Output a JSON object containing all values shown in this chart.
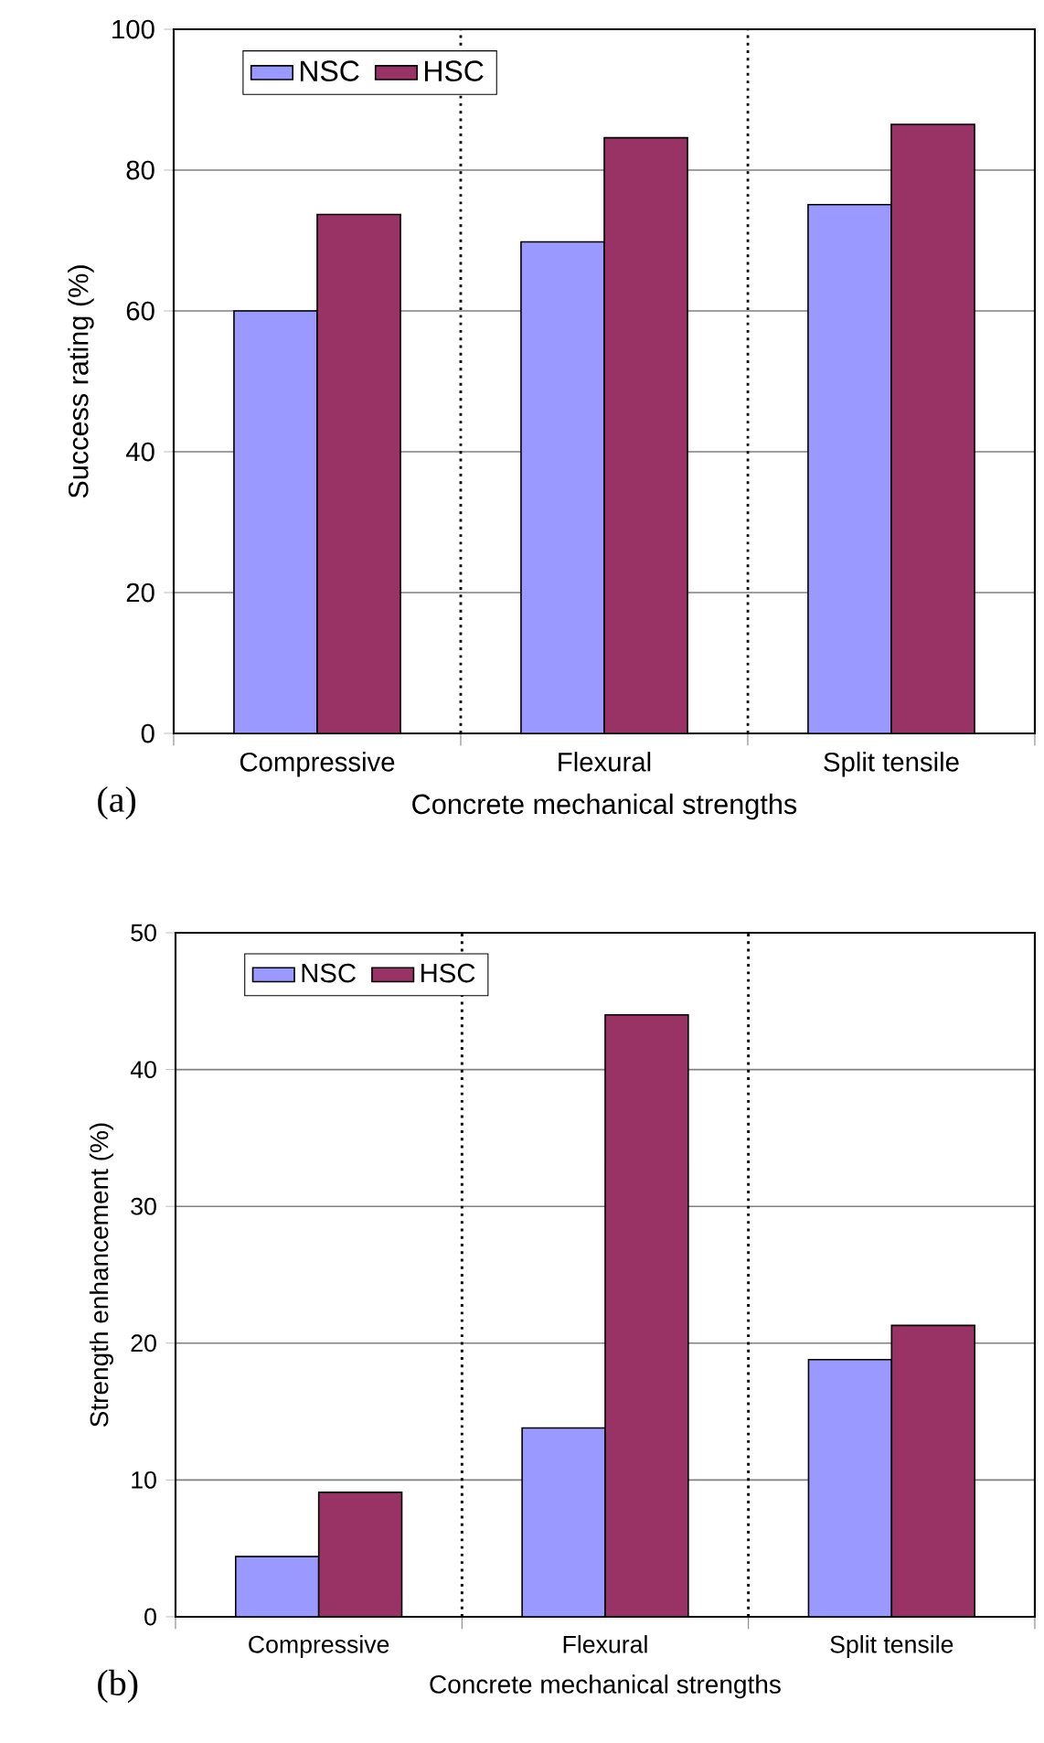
{
  "chart_data": [
    {
      "type": "bar",
      "xlabel": "Concrete mechanical strengths",
      "ylabel": "Success rating (%)",
      "annotations": [
        "(a)"
      ],
      "categories": [
        "Compressive",
        "Flexural",
        "Split tensile"
      ],
      "series": [
        {
          "name": "NSC",
          "color": "#9999ff",
          "values": [
            60.0,
            69.8,
            75.1
          ]
        },
        {
          "name": "HSC",
          "color": "#993366",
          "values": [
            73.7,
            84.6,
            86.5
          ]
        }
      ],
      "ylim": [
        0,
        100
      ],
      "yticks": [
        0,
        20,
        40,
        60,
        80,
        100
      ],
      "grid": "y",
      "legend": "top left"
    },
    {
      "type": "bar",
      "xlabel": "Concrete mechanical strengths",
      "ylabel": "Strength enhancement (%)",
      "annotations": [
        "(b)"
      ],
      "categories": [
        "Compressive",
        "Flexural",
        "Split tensile"
      ],
      "series": [
        {
          "name": "NSC",
          "color": "#9999ff",
          "values": [
            4.4,
            13.8,
            18.8
          ]
        },
        {
          "name": "HSC",
          "color": "#993366",
          "values": [
            9.1,
            44.0,
            21.3
          ]
        }
      ],
      "ylim": [
        0,
        50
      ],
      "yticks": [
        0,
        10,
        20,
        30,
        40,
        50
      ],
      "grid": "y",
      "legend": "top left"
    }
  ]
}
